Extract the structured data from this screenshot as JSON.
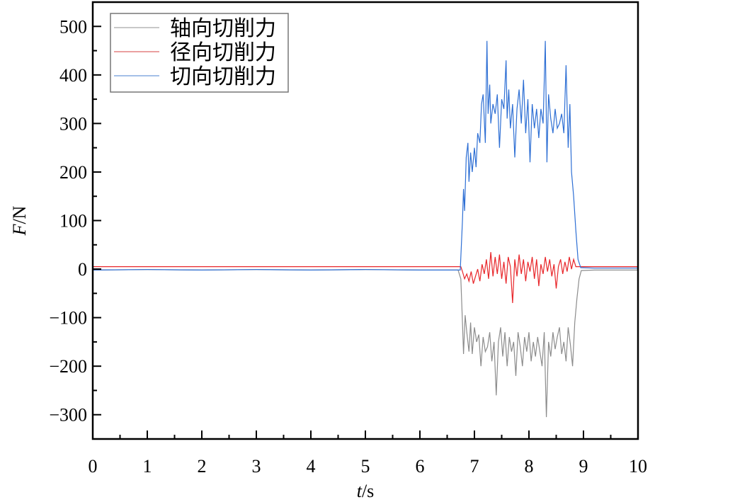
{
  "chart_data": {
    "type": "line",
    "xlabel": "t/s",
    "ylabel": "F/N",
    "xlim": [
      0,
      10
    ],
    "ylim": [
      -350,
      550
    ],
    "xticks": [
      0,
      1,
      2,
      3,
      4,
      5,
      6,
      7,
      8,
      9,
      10
    ],
    "yticks": [
      -300,
      -200,
      -100,
      0,
      100,
      200,
      300,
      400,
      500
    ],
    "ytick_labels": [
      "−300",
      "−200",
      "−100",
      "0",
      "100",
      "200",
      "300",
      "400",
      "500"
    ],
    "grid": false,
    "legend_placement": "top-left",
    "series": [
      {
        "name": "轴向切削力",
        "color": "#8c8c8c",
        "legend_color": "#c8c8c8",
        "x": [
          0,
          1,
          2,
          3,
          4,
          5,
          6,
          6.7,
          6.75,
          6.78,
          6.8,
          6.83,
          6.86,
          6.9,
          6.93,
          6.96,
          7.0,
          7.04,
          7.08,
          7.12,
          7.16,
          7.2,
          7.24,
          7.28,
          7.32,
          7.36,
          7.4,
          7.44,
          7.48,
          7.52,
          7.56,
          7.6,
          7.64,
          7.68,
          7.72,
          7.76,
          7.8,
          7.84,
          7.88,
          7.92,
          7.96,
          8.0,
          8.04,
          8.08,
          8.12,
          8.16,
          8.2,
          8.24,
          8.28,
          8.32,
          8.36,
          8.4,
          8.44,
          8.48,
          8.52,
          8.56,
          8.6,
          8.64,
          8.68,
          8.72,
          8.76,
          8.8,
          8.84,
          8.88,
          8.92,
          8.96,
          9.2,
          10
        ],
        "y": [
          -2,
          -1,
          -2,
          -1,
          -2,
          -1,
          -2,
          -2,
          -20,
          -110,
          -175,
          -95,
          -130,
          -170,
          -110,
          -175,
          -120,
          -150,
          -135,
          -200,
          -140,
          -170,
          -160,
          -130,
          -190,
          -150,
          -260,
          -150,
          -120,
          -180,
          -130,
          -200,
          -140,
          -170,
          -150,
          -220,
          -130,
          -160,
          -200,
          -140,
          -170,
          -130,
          -190,
          -150,
          -180,
          -140,
          -170,
          -200,
          -130,
          -305,
          -150,
          -180,
          -130,
          -165,
          -140,
          -120,
          -175,
          -150,
          -190,
          -120,
          -155,
          -200,
          -110,
          -60,
          -20,
          -3,
          -2,
          -2
        ]
      },
      {
        "name": "径向切削力",
        "color": "#e8262a",
        "legend_color": "#eaa0a0",
        "x": [
          0,
          1,
          2,
          3,
          4,
          5,
          6,
          6.75,
          6.78,
          6.82,
          6.86,
          6.9,
          6.94,
          6.98,
          7.02,
          7.06,
          7.1,
          7.14,
          7.18,
          7.22,
          7.26,
          7.3,
          7.34,
          7.38,
          7.42,
          7.46,
          7.5,
          7.54,
          7.58,
          7.62,
          7.66,
          7.7,
          7.74,
          7.78,
          7.82,
          7.86,
          7.9,
          7.94,
          7.98,
          8.02,
          8.06,
          8.1,
          8.14,
          8.18,
          8.22,
          8.26,
          8.3,
          8.34,
          8.38,
          8.42,
          8.46,
          8.5,
          8.54,
          8.58,
          8.62,
          8.66,
          8.7,
          8.74,
          8.78,
          8.82,
          8.86,
          8.9,
          9.2,
          10
        ],
        "y": [
          5,
          5,
          5,
          5,
          5,
          5,
          5,
          5,
          -5,
          -20,
          -10,
          -25,
          -5,
          -30,
          -15,
          0,
          -25,
          10,
          -10,
          20,
          -20,
          35,
          -15,
          25,
          -10,
          30,
          -20,
          15,
          -30,
          25,
          5,
          -70,
          20,
          -15,
          30,
          -10,
          20,
          -25,
          15,
          -5,
          25,
          -20,
          20,
          -35,
          10,
          -10,
          25,
          -5,
          20,
          -15,
          10,
          -40,
          5,
          20,
          -10,
          15,
          -5,
          25,
          0,
          20,
          5,
          5,
          5,
          5
        ]
      },
      {
        "name": "切向切削力",
        "color": "#2e6fd4",
        "legend_color": "#a4c0e8",
        "x": [
          0,
          1,
          2,
          3,
          4,
          5,
          6,
          6.74,
          6.78,
          6.8,
          6.82,
          6.85,
          6.88,
          6.9,
          6.93,
          6.96,
          7.0,
          7.03,
          7.06,
          7.1,
          7.13,
          7.16,
          7.2,
          7.23,
          7.25,
          7.28,
          7.3,
          7.34,
          7.38,
          7.42,
          7.46,
          7.5,
          7.54,
          7.58,
          7.6,
          7.63,
          7.66,
          7.7,
          7.74,
          7.78,
          7.82,
          7.86,
          7.9,
          7.94,
          7.98,
          8.02,
          8.06,
          8.1,
          8.14,
          8.18,
          8.22,
          8.26,
          8.3,
          8.33,
          8.36,
          8.4,
          8.44,
          8.48,
          8.52,
          8.56,
          8.6,
          8.64,
          8.68,
          8.72,
          8.75,
          8.78,
          8.82,
          8.86,
          8.9,
          8.95,
          9.2,
          10
        ],
        "y": [
          -2,
          -1,
          -2,
          -1,
          -2,
          -1,
          -2,
          -2,
          100,
          165,
          120,
          230,
          260,
          180,
          240,
          200,
          250,
          210,
          280,
          260,
          340,
          360,
          260,
          470,
          320,
          380,
          300,
          340,
          320,
          360,
          250,
          350,
          330,
          430,
          310,
          370,
          290,
          340,
          230,
          330,
          370,
          300,
          390,
          280,
          350,
          220,
          340,
          290,
          330,
          270,
          330,
          300,
          470,
          220,
          360,
          310,
          280,
          330,
          290,
          300,
          320,
          280,
          420,
          250,
          340,
          200,
          150,
          80,
          20,
          3,
          2,
          2
        ]
      }
    ]
  }
}
